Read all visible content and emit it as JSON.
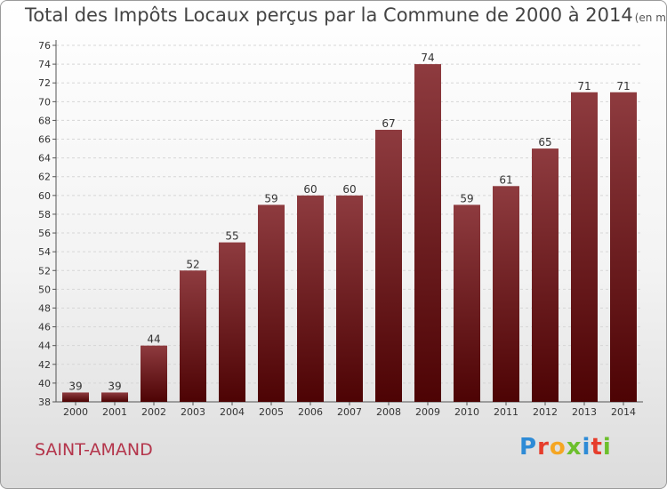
{
  "title": "Total des Impôts Locaux perçus par la Commune de 2000 à 2014",
  "unit_label": "(en milliers d'€)",
  "commune": "SAINT-AMAND",
  "logo": {
    "letters": [
      "P",
      "r",
      "o",
      "x",
      "i",
      "t",
      "i"
    ],
    "colors": [
      "#2e8bd6",
      "#e63d2c",
      "#f5a623",
      "#6cbf2c",
      "#2e8bd6",
      "#e63d2c",
      "#6cbf2c"
    ]
  },
  "colors": {
    "bar_top": "#8e3b3f",
    "bar_bottom": "#4d0304",
    "commune_text": "#b4354b"
  },
  "chart_data": {
    "type": "bar",
    "title": "Total des Impôts Locaux perçus par la Commune de 2000 à 2014",
    "categories": [
      "2000",
      "2001",
      "2002",
      "2003",
      "2004",
      "2005",
      "2006",
      "2007",
      "2008",
      "2009",
      "2010",
      "2011",
      "2012",
      "2013",
      "2014"
    ],
    "values": [
      39,
      39,
      44,
      52,
      55,
      59,
      60,
      60,
      67,
      74,
      59,
      61,
      65,
      71,
      71
    ],
    "ylim": [
      38,
      76
    ],
    "yticks": [
      38,
      40,
      42,
      44,
      46,
      48,
      50,
      52,
      54,
      56,
      58,
      60,
      62,
      64,
      66,
      68,
      70,
      72,
      74,
      76
    ],
    "grid": true,
    "legend": "none"
  }
}
